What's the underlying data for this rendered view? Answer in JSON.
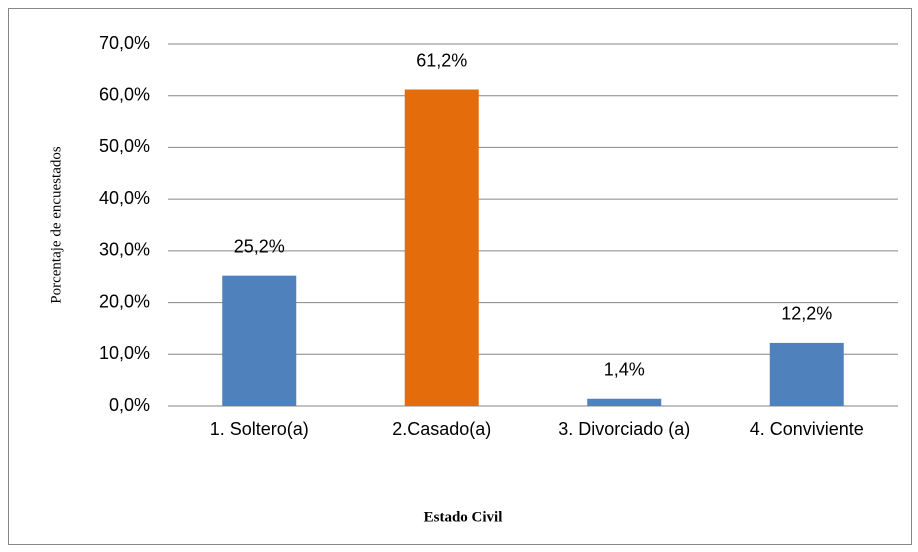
{
  "chart_data": {
    "type": "bar",
    "y_label": "Porcentaje de encuestados",
    "x_label": "Estado Civil",
    "categories": [
      "1. Soltero(a)",
      "2.Casado(a)",
      "3. Divorciado (a)",
      "4. Conviviente"
    ],
    "values": [
      25.2,
      61.2,
      1.4,
      12.2
    ],
    "value_labels": [
      "25,2%",
      "61,2%",
      "1,4%",
      "12,2%"
    ],
    "colors": [
      "#4f81bd",
      "#e46c0a",
      "#4f81bd",
      "#4f81bd"
    ],
    "ylim": [
      0,
      70
    ],
    "yticks": [
      {
        "value": 0,
        "label": "0,0%"
      },
      {
        "value": 10,
        "label": "10,0%"
      },
      {
        "value": 20,
        "label": "20,0%"
      },
      {
        "value": 30,
        "label": "30,0%"
      },
      {
        "value": 40,
        "label": "40,0%"
      },
      {
        "value": 50,
        "label": "50,0%"
      },
      {
        "value": 60,
        "label": "60,0%"
      },
      {
        "value": 70,
        "label": "70,0%"
      }
    ],
    "grid": true
  }
}
